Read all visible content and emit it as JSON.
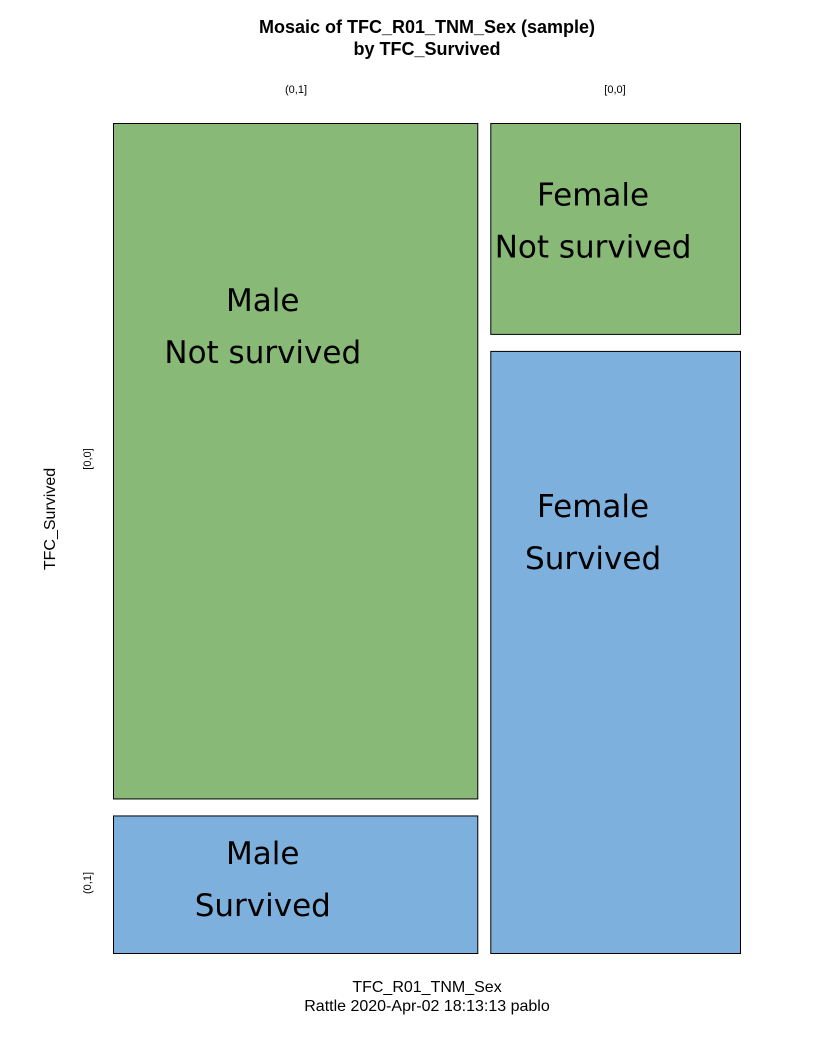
{
  "chart_data": {
    "type": "mosaic",
    "title": [
      "Mosaic of TFC_R01_TNM_Sex (sample)",
      "by TFC_Survived"
    ],
    "xlabel": "TFC_R01_TNM_Sex",
    "ylabel": "TFC_Survived",
    "caption": "Rattle 2020-Apr-02 18:13:13 pablo",
    "column_labels": [
      "(0,1]",
      "[0,0]"
    ],
    "row_labels": [
      "[0,0]",
      "(0,1]"
    ],
    "column_proportions": [
      0.593,
      0.407
    ],
    "tiles": [
      {
        "column": 0,
        "row": 0,
        "proportion": 0.83,
        "color": "#88B976",
        "lines": [
          "Male",
          "Not survived"
        ]
      },
      {
        "column": 0,
        "row": 1,
        "proportion": 0.17,
        "color": "#7EB0DD",
        "lines": [
          "Male",
          "Survived"
        ]
      },
      {
        "column": 1,
        "row": 0,
        "proportion": 0.26,
        "color": "#88B976",
        "lines": [
          "Female",
          "Not survived"
        ]
      },
      {
        "column": 1,
        "row": 1,
        "proportion": 0.74,
        "color": "#7EB0DD",
        "lines": [
          "Female",
          "Survived"
        ]
      }
    ]
  }
}
